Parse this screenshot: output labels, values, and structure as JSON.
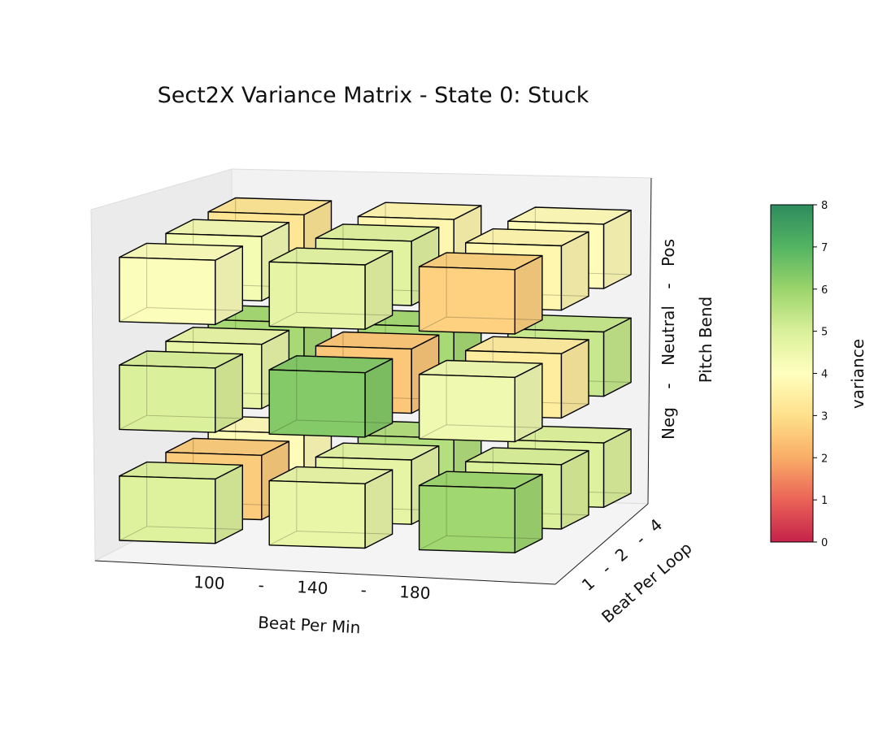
{
  "chart_data": {
    "type": "3d-bar",
    "title": "Sect2X Variance Matrix - State 0: Stuck",
    "x_axis": {
      "label": "Beat Per Min",
      "ticks": [
        "100",
        "-",
        "140",
        "-",
        "180"
      ],
      "categories": [
        "100",
        "140",
        "180"
      ]
    },
    "y_axis": {
      "label": "Beat Per Loop",
      "ticks": [
        "1",
        "-",
        "2",
        "-",
        "4"
      ],
      "categories": [
        "1",
        "2",
        "4"
      ]
    },
    "z_axis": {
      "label": "Pitch Bend",
      "ticks": [
        "Neg",
        "-",
        "Neutral",
        "-",
        "Pos"
      ],
      "categories": [
        "Neg",
        "Neutral",
        "Pos"
      ]
    },
    "colorbar": {
      "label": "variance",
      "range": [
        0,
        8
      ],
      "ticks": [
        "0",
        "1",
        "2",
        "3",
        "4",
        "5",
        "6",
        "7",
        "8"
      ],
      "colormap": "RdYlGn"
    },
    "grid": false,
    "cells": [
      {
        "bpm": "100",
        "loop": "1",
        "pitch": "Neg",
        "variance": 4.9
      },
      {
        "bpm": "100",
        "loop": "2",
        "pitch": "Neg",
        "variance": 2.6
      },
      {
        "bpm": "100",
        "loop": "4",
        "pitch": "Neg",
        "variance": 3.9
      },
      {
        "bpm": "140",
        "loop": "1",
        "pitch": "Neg",
        "variance": 4.6
      },
      {
        "bpm": "140",
        "loop": "2",
        "pitch": "Neg",
        "variance": 4.7
      },
      {
        "bpm": "140",
        "loop": "4",
        "pitch": "Neg",
        "variance": 5.6
      },
      {
        "bpm": "180",
        "loop": "1",
        "pitch": "Neg",
        "variance": 5.9
      },
      {
        "bpm": "180",
        "loop": "2",
        "pitch": "Neg",
        "variance": 5.0
      },
      {
        "bpm": "180",
        "loop": "4",
        "pitch": "Neg",
        "variance": 4.9
      },
      {
        "bpm": "100",
        "loop": "1",
        "pitch": "Neutral",
        "variance": 5.0
      },
      {
        "bpm": "100",
        "loop": "2",
        "pitch": "Neutral",
        "variance": 4.6
      },
      {
        "bpm": "100",
        "loop": "4",
        "pitch": "Neutral",
        "variance": 5.8
      },
      {
        "bpm": "140",
        "loop": "1",
        "pitch": "Neutral",
        "variance": 6.3
      },
      {
        "bpm": "140",
        "loop": "2",
        "pitch": "Neutral",
        "variance": 2.5
      },
      {
        "bpm": "140",
        "loop": "4",
        "pitch": "Neutral",
        "variance": 5.8
      },
      {
        "bpm": "180",
        "loop": "1",
        "pitch": "Neutral",
        "variance": 4.4
      },
      {
        "bpm": "180",
        "loop": "2",
        "pitch": "Neutral",
        "variance": 3.4
      },
      {
        "bpm": "180",
        "loop": "4",
        "pitch": "Neutral",
        "variance": 5.3
      },
      {
        "bpm": "100",
        "loop": "1",
        "pitch": "Pos",
        "variance": 4.1
      },
      {
        "bpm": "100",
        "loop": "2",
        "pitch": "Pos",
        "variance": 4.3
      },
      {
        "bpm": "100",
        "loop": "4",
        "pitch": "Pos",
        "variance": 3.2
      },
      {
        "bpm": "140",
        "loop": "1",
        "pitch": "Pos",
        "variance": 4.7
      },
      {
        "bpm": "140",
        "loop": "2",
        "pitch": "Pos",
        "variance": 4.8
      },
      {
        "bpm": "140",
        "loop": "4",
        "pitch": "Pos",
        "variance": 3.7
      },
      {
        "bpm": "180",
        "loop": "1",
        "pitch": "Pos",
        "variance": 2.7
      },
      {
        "bpm": "180",
        "loop": "2",
        "pitch": "Pos",
        "variance": 3.7
      },
      {
        "bpm": "180",
        "loop": "4",
        "pitch": "Pos",
        "variance": 3.9
      }
    ]
  }
}
